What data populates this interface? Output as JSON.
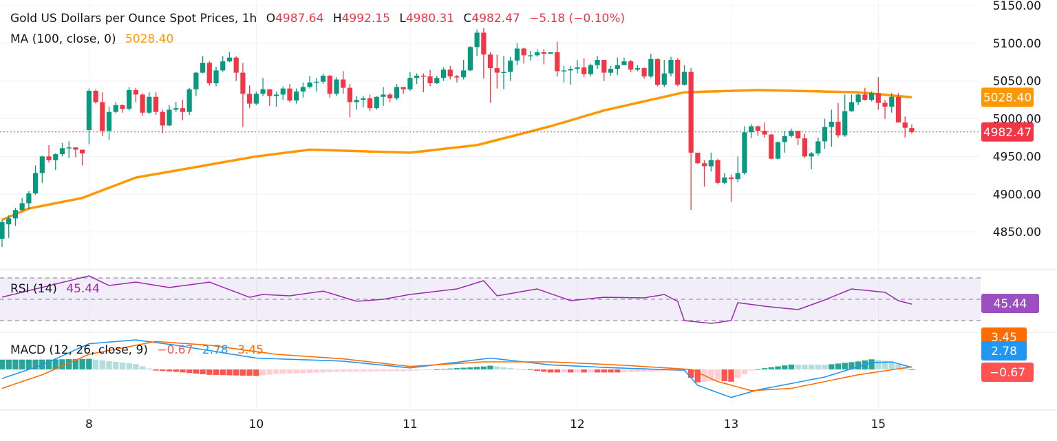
{
  "header": {
    "symbol": "Gold US Dollars per Ounce Spot Prices, 1h",
    "o_label": "O",
    "o": "4987.64",
    "h_label": "H",
    "h": "4992.15",
    "l_label": "L",
    "l": "4980.31",
    "c_label": "C",
    "c": "4982.47",
    "change": "−5.18 (−0.10%)"
  },
  "ma_legend": {
    "label": "MA (100, close, 0)",
    "value": "5028.40"
  },
  "rsi_legend": {
    "label": "RSI (14)",
    "value": "45.44"
  },
  "macd_legend": {
    "label": "MACD (12, 26, close, 9)",
    "hist": "−0.67",
    "macd": "2.78",
    "signal": "3.45"
  },
  "price_axis": {
    "ticks": [
      5150,
      5100,
      5050,
      5000,
      4950,
      4900,
      4850
    ],
    "tick_labels": [
      "5150.00",
      "5100.00",
      "5050.00",
      "5000.00",
      "4950.00",
      "4900.00",
      "4850.00"
    ]
  },
  "badges": {
    "ma": "5028.40",
    "last": "4982.47",
    "rsi": "45.44",
    "signal": "3.45",
    "macd": "2.78",
    "hist": "−0.67"
  },
  "time_axis": {
    "labels": [
      "8",
      "10",
      "11",
      "12",
      "13",
      "15"
    ],
    "label_bars": [
      13,
      38,
      61,
      86,
      109,
      131
    ]
  },
  "colors": {
    "up": "#089981",
    "down": "#f23645",
    "ma": "#ff9800",
    "rsi": "#9c27b0",
    "macd": "#2196f3",
    "signal": "#ff6d00",
    "hist_up_strong": "#26a69a",
    "hist_up_weak": "#b2dfdb",
    "hist_down_strong": "#ff5252",
    "hist_down_weak": "#ffcdd2"
  },
  "chart_data": {
    "type": "candlestick",
    "interval": "1h",
    "last_price": 4982.47,
    "ylim": [
      4825,
      5155
    ],
    "grid": true,
    "candles_ohlc": [
      [
        4841,
        4866,
        4830,
        4863
      ],
      [
        4860,
        4872,
        4842,
        4868
      ],
      [
        4868,
        4882,
        4858,
        4879
      ],
      [
        4879,
        4895,
        4877,
        4888
      ],
      [
        4888,
        4904,
        4880,
        4901
      ],
      [
        4901,
        4938,
        4899,
        4928
      ],
      [
        4928,
        4951,
        4915,
        4950
      ],
      [
        4950,
        4965,
        4942,
        4945
      ],
      [
        4945,
        4954,
        4932,
        4953
      ],
      [
        4953,
        4968,
        4950,
        4961
      ],
      [
        4961,
        4970,
        4948,
        4962
      ],
      [
        4962,
        4962,
        4949,
        4959
      ],
      [
        4959,
        4958,
        4938,
        4954
      ],
      [
        4985,
        5040,
        4966,
        5037
      ],
      [
        5037,
        5039,
        5020,
        5022
      ],
      [
        5022,
        5035,
        4977,
        4984
      ],
      [
        4984,
        5016,
        4972,
        5009
      ],
      [
        5009,
        5022,
        5007,
        5018
      ],
      [
        5018,
        5019,
        5008,
        5013
      ],
      [
        5013,
        5042,
        5011,
        5038
      ],
      [
        5038,
        5041,
        5022,
        5032
      ],
      [
        5032,
        5034,
        5004,
        5008
      ],
      [
        5008,
        5035,
        5006,
        5029
      ],
      [
        5029,
        5035,
        5005,
        5009
      ],
      [
        5009,
        5012,
        4981,
        4991
      ],
      [
        4991,
        5018,
        4990,
        5012
      ],
      [
        5012,
        5022,
        5009,
        5014
      ],
      [
        5014,
        5025,
        4998,
        5009
      ],
      [
        5009,
        5041,
        5005,
        5039
      ],
      [
        5039,
        5062,
        5030,
        5061
      ],
      [
        5061,
        5083,
        5060,
        5074
      ],
      [
        5074,
        5076,
        5044,
        5047
      ],
      [
        5047,
        5069,
        5043,
        5064
      ],
      [
        5064,
        5083,
        5062,
        5076
      ],
      [
        5076,
        5088,
        5075,
        5081
      ],
      [
        5081,
        5083,
        5050,
        5061
      ],
      [
        5061,
        5074,
        4989,
        5033
      ],
      [
        5033,
        5044,
        5014,
        5020
      ],
      [
        5020,
        5036,
        5018,
        5033
      ],
      [
        5033,
        5054,
        5030,
        5039
      ],
      [
        5039,
        5039,
        5017,
        5030
      ],
      [
        5030,
        5036,
        5016,
        5032
      ],
      [
        5032,
        5043,
        5025,
        5040
      ],
      [
        5040,
        5046,
        5022,
        5024
      ],
      [
        5024,
        5040,
        5020,
        5036
      ],
      [
        5036,
        5048,
        5028,
        5042
      ],
      [
        5042,
        5057,
        5040,
        5048
      ],
      [
        5048,
        5054,
        5036,
        5049
      ],
      [
        5049,
        5060,
        5046,
        5057
      ],
      [
        5057,
        5058,
        5028,
        5033
      ],
      [
        5033,
        5055,
        5030,
        5052
      ],
      [
        5052,
        5063,
        5033,
        5041
      ],
      [
        5041,
        5046,
        5002,
        5022
      ],
      [
        5022,
        5030,
        5012,
        5025
      ],
      [
        5025,
        5030,
        5015,
        5027
      ],
      [
        5027,
        5032,
        5010,
        5014
      ],
      [
        5014,
        5030,
        5012,
        5029
      ],
      [
        5029,
        5042,
        5017,
        5032
      ],
      [
        5032,
        5034,
        5022,
        5027
      ],
      [
        5027,
        5046,
        5025,
        5042
      ],
      [
        5042,
        5042,
        5033,
        5039
      ],
      [
        5039,
        5062,
        5037,
        5054
      ],
      [
        5054,
        5060,
        5046,
        5057
      ],
      [
        5057,
        5060,
        5035,
        5056
      ],
      [
        5056,
        5065,
        5043,
        5047
      ],
      [
        5047,
        5057,
        5046,
        5054
      ],
      [
        5054,
        5068,
        5050,
        5065
      ],
      [
        5065,
        5070,
        5052,
        5056
      ],
      [
        5056,
        5058,
        5048,
        5055
      ],
      [
        5055,
        5078,
        5052,
        5064
      ],
      [
        5064,
        5096,
        5063,
        5095
      ],
      [
        5095,
        5118,
        5083,
        5114
      ],
      [
        5114,
        5120,
        5053,
        5085
      ],
      [
        5085,
        5088,
        5021,
        5067
      ],
      [
        5067,
        5085,
        5040,
        5061
      ],
      [
        5061,
        5083,
        5039,
        5062
      ],
      [
        5062,
        5082,
        5050,
        5077
      ],
      [
        5077,
        5100,
        5071,
        5093
      ],
      [
        5093,
        5094,
        5073,
        5084
      ],
      [
        5084,
        5090,
        5077,
        5084
      ],
      [
        5084,
        5092,
        5082,
        5088
      ],
      [
        5088,
        5092,
        5072,
        5086
      ],
      [
        5086,
        5088,
        5086,
        5088
      ],
      [
        5088,
        5102,
        5056,
        5063
      ],
      [
        5063,
        5070,
        5048,
        5064
      ],
      [
        5064,
        5070,
        5045,
        5066
      ],
      [
        5066,
        5078,
        5060,
        5068
      ],
      [
        5068,
        5080,
        5055,
        5059
      ],
      [
        5059,
        5073,
        5056,
        5071
      ],
      [
        5071,
        5083,
        5066,
        5078
      ],
      [
        5078,
        5078,
        5050,
        5061
      ],
      [
        5061,
        5070,
        5057,
        5066
      ],
      [
        5066,
        5081,
        5058,
        5071
      ],
      [
        5071,
        5081,
        5071,
        5076
      ],
      [
        5076,
        5078,
        5062,
        5065
      ],
      [
        5065,
        5071,
        5063,
        5067
      ],
      [
        5067,
        5068,
        5053,
        5056
      ],
      [
        5056,
        5086,
        5054,
        5079
      ],
      [
        5079,
        5080,
        5043,
        5045
      ],
      [
        5045,
        5078,
        5042,
        5060
      ],
      [
        5060,
        5082,
        5056,
        5078
      ],
      [
        5078,
        5080,
        5043,
        5045
      ],
      [
        5045,
        5071,
        5044,
        5062
      ],
      [
        5062,
        5067,
        4879,
        4955
      ],
      [
        4955,
        4955,
        4940,
        4941
      ],
      [
        4941,
        4945,
        4910,
        4937
      ],
      [
        4937,
        4955,
        4930,
        4945
      ],
      [
        4945,
        4947,
        4913,
        4915
      ],
      [
        4915,
        4928,
        4913,
        4922
      ],
      [
        4922,
        4926,
        4890,
        4920
      ],
      [
        4920,
        4950,
        4916,
        4928
      ],
      [
        4928,
        4990,
        4926,
        4982
      ],
      [
        4982,
        4993,
        4974,
        4990
      ],
      [
        4990,
        4991,
        4977,
        4984
      ],
      [
        4984,
        4995,
        4975,
        4979
      ],
      [
        4979,
        4980,
        4946,
        4947
      ],
      [
        4947,
        4970,
        4946,
        4969
      ],
      [
        4969,
        4984,
        4955,
        4977
      ],
      [
        4977,
        4987,
        4975,
        4984
      ],
      [
        4984,
        4984,
        4965,
        4974
      ],
      [
        4974,
        4980,
        4948,
        4950
      ],
      [
        4950,
        4956,
        4933,
        4954
      ],
      [
        4954,
        4975,
        4951,
        4970
      ],
      [
        4970,
        5000,
        4960,
        4989
      ],
      [
        4989,
        5012,
        4963,
        4996
      ],
      [
        4996,
        5021,
        4975,
        4978
      ],
      [
        4978,
        5032,
        4976,
        5010
      ],
      [
        5010,
        5032,
        5009,
        5022
      ],
      [
        5022,
        5033,
        5018,
        5032
      ],
      [
        5032,
        5041,
        5024,
        5025
      ],
      [
        5025,
        5036,
        5023,
        5034
      ],
      [
        5034,
        5055,
        5012,
        5021
      ],
      [
        5021,
        5025,
        5000,
        5016
      ],
      [
        5016,
        5034,
        5008,
        5029
      ],
      [
        5029,
        5034,
        4995,
        4995
      ],
      [
        4995,
        5003,
        4975,
        4988
      ],
      [
        4987.64,
        4992.15,
        4980.31,
        4982.47
      ]
    ],
    "ma100_points": [
      [
        0,
        4866
      ],
      [
        4,
        4881
      ],
      [
        12,
        4895
      ],
      [
        20,
        4922
      ],
      [
        38,
        4950
      ],
      [
        46,
        4959
      ],
      [
        61,
        4955
      ],
      [
        71,
        4965
      ],
      [
        82,
        4990
      ],
      [
        90,
        5011
      ],
      [
        102,
        5035
      ],
      [
        113,
        5038
      ],
      [
        128,
        5035
      ],
      [
        136,
        5028.4
      ]
    ],
    "rsi": {
      "levels": [
        70,
        50,
        30
      ],
      "points": [
        [
          0,
          52
        ],
        [
          13,
          71.9
        ],
        [
          16,
          62.9
        ],
        [
          20,
          66.1
        ],
        [
          25,
          61
        ],
        [
          31,
          66.1
        ],
        [
          37,
          51.9
        ],
        [
          39,
          54.5
        ],
        [
          43,
          53.2
        ],
        [
          48,
          57.7
        ],
        [
          53,
          48.1
        ],
        [
          57,
          50
        ],
        [
          61,
          54.5
        ],
        [
          68,
          59.7
        ],
        [
          72,
          67.4
        ],
        [
          74,
          53.2
        ],
        [
          80,
          59.7
        ],
        [
          85,
          48.7
        ],
        [
          90,
          51.9
        ],
        [
          96,
          51.3
        ],
        [
          99,
          54.5
        ],
        [
          101,
          48.1
        ],
        [
          102,
          30
        ],
        [
          106,
          27.4
        ],
        [
          109,
          30
        ],
        [
          110,
          46.8
        ],
        [
          114,
          43.5
        ],
        [
          119,
          40.3
        ],
        [
          123,
          49.4
        ],
        [
          127,
          59.7
        ],
        [
          132,
          56.5
        ],
        [
          134,
          48.7
        ],
        [
          136,
          45.44
        ]
      ]
    },
    "macd": {
      "macd_points": [
        [
          0,
          -12
        ],
        [
          6,
          6
        ],
        [
          13,
          34
        ],
        [
          20,
          39
        ],
        [
          26,
          32
        ],
        [
          38,
          15
        ],
        [
          51,
          11
        ],
        [
          61,
          2
        ],
        [
          73,
          15
        ],
        [
          82,
          6
        ],
        [
          92,
          2
        ],
        [
          102,
          -1
        ],
        [
          104,
          -21
        ],
        [
          109,
          -37
        ],
        [
          113,
          -27
        ],
        [
          123,
          -10
        ],
        [
          130,
          9
        ],
        [
          133,
          10
        ],
        [
          136,
          2.78
        ]
      ],
      "signal_points": [
        [
          0,
          -25
        ],
        [
          6,
          -7
        ],
        [
          13,
          20
        ],
        [
          23,
          37
        ],
        [
          31,
          32
        ],
        [
          41,
          20
        ],
        [
          51,
          14
        ],
        [
          61,
          4
        ],
        [
          72,
          10
        ],
        [
          82,
          10
        ],
        [
          92,
          6
        ],
        [
          103,
          0
        ],
        [
          107,
          -16
        ],
        [
          112,
          -28
        ],
        [
          118,
          -25
        ],
        [
          128,
          -7
        ],
        [
          136,
          3.45
        ]
      ]
    }
  }
}
